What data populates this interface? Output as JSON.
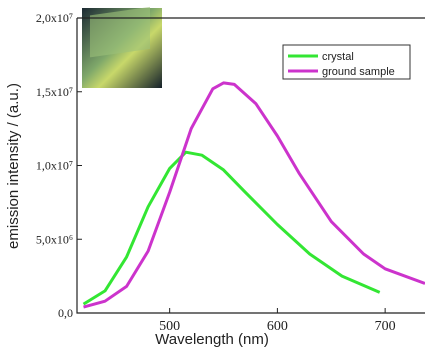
{
  "chart_data": {
    "type": "line",
    "xlabel": "Wavelength (nm)",
    "ylabel": "emission intensity / (a.u.)",
    "xlim": [
      414,
      737
    ],
    "xticks": [
      500,
      600,
      700
    ],
    "ylim": [
      0,
      20000000
    ],
    "yticks": [
      {
        "value": 0,
        "label": "0,0"
      },
      {
        "value": 5000000,
        "label": "5,0x10⁶"
      },
      {
        "value": 10000000,
        "label": "1,0x10⁷"
      },
      {
        "value": 15000000,
        "label": "1,5x10⁷"
      },
      {
        "value": 20000000,
        "label": "2,0x10⁷"
      }
    ],
    "series": [
      {
        "name": "crystal",
        "color": "#33e633",
        "x": [
          420,
          440,
          460,
          480,
          500,
          515,
          530,
          550,
          570,
          600,
          630,
          660,
          695
        ],
        "values": [
          600000,
          1500000,
          3800000,
          7200000,
          9800000,
          10900000,
          10700000,
          9700000,
          8200000,
          6000000,
          4000000,
          2500000,
          1400000
        ]
      },
      {
        "name": "ground sample",
        "color": "#cc33cc",
        "x": [
          420,
          440,
          460,
          480,
          500,
          520,
          540,
          550,
          560,
          580,
          600,
          620,
          650,
          680,
          700,
          737
        ],
        "values": [
          400000,
          800000,
          1800000,
          4200000,
          8200000,
          12500000,
          15200000,
          15600000,
          15500000,
          14200000,
          12000000,
          9500000,
          6200000,
          4000000,
          3000000,
          2000000
        ]
      }
    ]
  }
}
